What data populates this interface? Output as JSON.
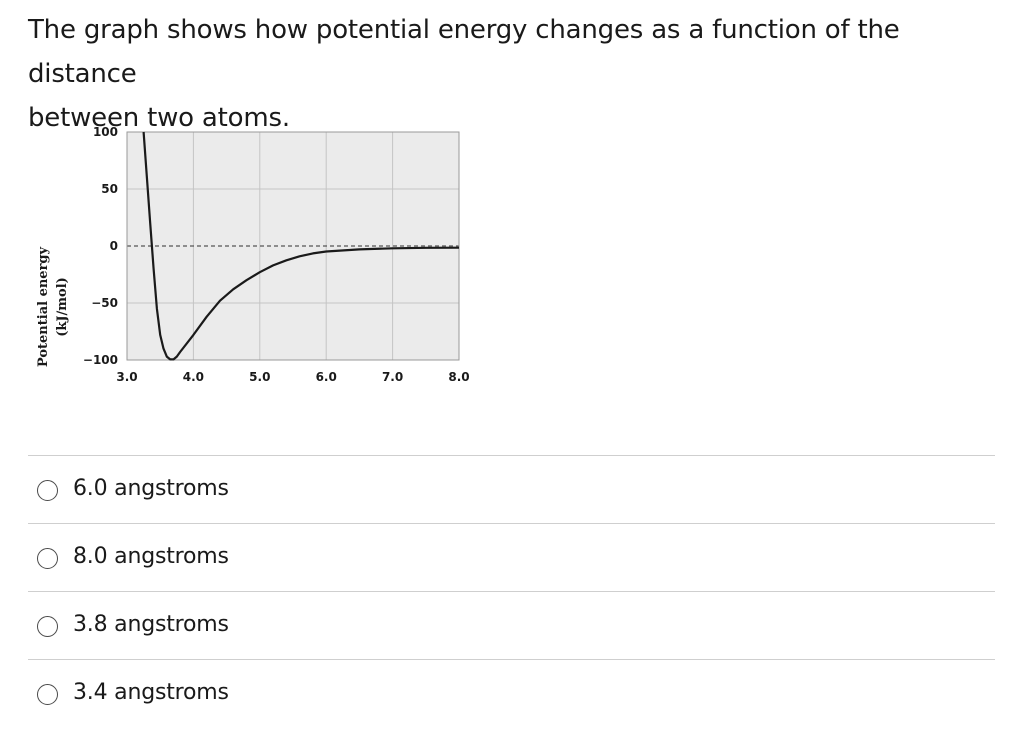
{
  "question": {
    "line1": "The graph shows how potential energy changes as a function of the distance",
    "line2": "between two atoms."
  },
  "chart_data": {
    "type": "line",
    "ylabel_line1": "Potential energy",
    "ylabel_line2": "(kJ/mol)",
    "xlabel": "",
    "xlim": [
      3.0,
      8.0
    ],
    "ylim": [
      -100,
      100
    ],
    "x_ticks": [
      "3.0",
      "4.0",
      "5.0",
      "6.0",
      "7.0",
      "8.0"
    ],
    "y_ticks": [
      "100",
      "50",
      "0",
      "−50",
      "−100"
    ],
    "x_tick_values": [
      3.0,
      4.0,
      5.0,
      6.0,
      7.0,
      8.0
    ],
    "y_tick_values": [
      100,
      50,
      0,
      -50,
      -100
    ],
    "grid": true,
    "zero_line": "dashed",
    "series": [
      {
        "values": [
          [
            3.25,
            100
          ],
          [
            3.3,
            60
          ],
          [
            3.35,
            20
          ],
          [
            3.4,
            -20
          ],
          [
            3.45,
            -55
          ],
          [
            3.5,
            -78
          ],
          [
            3.55,
            -90
          ],
          [
            3.6,
            -97
          ],
          [
            3.65,
            -99.5
          ],
          [
            3.7,
            -99.5
          ],
          [
            3.75,
            -97
          ],
          [
            3.8,
            -93
          ],
          [
            4.0,
            -78
          ],
          [
            4.2,
            -62
          ],
          [
            4.4,
            -48
          ],
          [
            4.6,
            -38
          ],
          [
            4.8,
            -30
          ],
          [
            5.0,
            -23
          ],
          [
            5.2,
            -17
          ],
          [
            5.4,
            -12.5
          ],
          [
            5.6,
            -9
          ],
          [
            5.8,
            -6.5
          ],
          [
            6.0,
            -4.8
          ],
          [
            6.5,
            -3
          ],
          [
            7.0,
            -2
          ],
          [
            7.5,
            -1.6
          ],
          [
            8.0,
            -1.5
          ]
        ]
      }
    ]
  },
  "options": [
    {
      "label": "6.0 angstroms"
    },
    {
      "label": "8.0 angstroms"
    },
    {
      "label": "3.8 angstroms"
    },
    {
      "label": "3.4 angstroms"
    }
  ]
}
